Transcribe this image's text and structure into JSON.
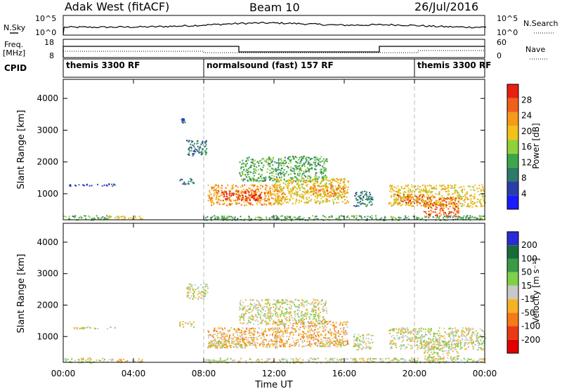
{
  "header": {
    "title": "Adak West (fitACF)",
    "beam": "Beam 10",
    "date": "26/Jul/2016"
  },
  "noise_panel": {
    "left_label": "N.Sky",
    "right_label": "N.Search",
    "left_ticks": [
      "10^5",
      "10^0"
    ],
    "right_ticks": [
      "10^5",
      "10^0"
    ]
  },
  "freq_panel": {
    "left_label_line1": "Freq.",
    "left_label_line2": "[MHz]",
    "right_label": "Nave",
    "left_ticks": [
      "18",
      "8"
    ],
    "right_ticks": [
      "60",
      "0"
    ]
  },
  "cpid_panel": {
    "label": "CPID",
    "programs": [
      {
        "name": "themis 3300 RF",
        "start_hour": 0,
        "end_hour": 8
      },
      {
        "name": "normalsound (fast) 157 RF",
        "start_hour": 8,
        "end_hour": 20
      },
      {
        "name": "themis 3300 RF",
        "start_hour": 20,
        "end_hour": 24
      }
    ]
  },
  "time_axis": {
    "label": "Time UT",
    "ticks": [
      "00:00",
      "04:00",
      "08:00",
      "12:00",
      "16:00",
      "20:00",
      "00:00"
    ],
    "tick_hours": [
      0,
      4,
      8,
      12,
      16,
      20,
      24
    ],
    "range_hours": [
      0,
      24
    ]
  },
  "range_axis": {
    "label": "Slant Range [km]",
    "ticks": [
      "1000",
      "2000",
      "3000",
      "4000"
    ],
    "tick_values": [
      1000,
      2000,
      3000,
      4000
    ],
    "range_km": [
      180,
      4600
    ]
  },
  "power_scale": {
    "label": "Power [dB]",
    "ticks": [
      "4",
      "8",
      "12",
      "16",
      "20",
      "24",
      "28"
    ],
    "tick_values": [
      4,
      8,
      12,
      16,
      20,
      24,
      28
    ],
    "range": [
      0,
      32
    ]
  },
  "velocity_scale": {
    "label": "Velocity [m s⁻¹]",
    "ticks": [
      "200",
      "100",
      "50",
      "15",
      "-15",
      "-50",
      "-100",
      "-200"
    ],
    "colors": [
      "#2b2bd6",
      "#1a6b3a",
      "#3a9a45",
      "#7fd04a",
      "#c8c8c8",
      "#f5b324",
      "#f57a18",
      "#ea3a14",
      "#e00000"
    ]
  },
  "power_colors": [
    "#1a1aff",
    "#2a3ea8",
    "#2e7a6a",
    "#3da64a",
    "#8fd13a",
    "#f2c21a",
    "#f59a1a",
    "#f06018",
    "#e82010"
  ],
  "chart_data": {
    "type": "heatmap",
    "description_free": true,
    "x_units": "hours UT",
    "y_units": "km",
    "power_regions": [
      {
        "x0": 0.0,
        "x1": 2.5,
        "y0": 180,
        "y1": 330,
        "level": 3
      },
      {
        "x0": 2.5,
        "x1": 4.5,
        "y0": 200,
        "y1": 320,
        "level": 5
      },
      {
        "x0": 0.3,
        "x1": 3.0,
        "y0": 1260,
        "y1": 1330,
        "level": 1
      },
      {
        "x0": 6.6,
        "x1": 7.4,
        "y0": 1300,
        "y1": 1500,
        "level": 2
      },
      {
        "x0": 6.7,
        "x1": 6.9,
        "y0": 3250,
        "y1": 3400,
        "level": 1
      },
      {
        "x0": 7.0,
        "x1": 8.2,
        "y0": 2200,
        "y1": 2700,
        "level": 2
      },
      {
        "x0": 8.2,
        "x1": 12.5,
        "y0": 650,
        "y1": 1300,
        "level": 6
      },
      {
        "x0": 9.0,
        "x1": 11.5,
        "y0": 800,
        "y1": 1100,
        "level": 8
      },
      {
        "x0": 10.0,
        "x1": 15.0,
        "y0": 1400,
        "y1": 2200,
        "level": 3
      },
      {
        "x0": 12.0,
        "x1": 16.2,
        "y0": 700,
        "y1": 1500,
        "level": 5
      },
      {
        "x0": 14.0,
        "x1": 16.0,
        "y0": 900,
        "y1": 1300,
        "level": 6
      },
      {
        "x0": 8.0,
        "x1": 24.0,
        "y0": 180,
        "y1": 330,
        "level": 3
      },
      {
        "x0": 16.5,
        "x1": 17.6,
        "y0": 600,
        "y1": 1100,
        "level": 2
      },
      {
        "x0": 18.5,
        "x1": 24.0,
        "y0": 600,
        "y1": 1300,
        "level": 5
      },
      {
        "x0": 20.5,
        "x1": 22.5,
        "y0": 300,
        "y1": 900,
        "level": 7
      },
      {
        "x0": 19.0,
        "x1": 20.5,
        "y0": 700,
        "y1": 1000,
        "level": 7
      }
    ],
    "velocity_regions": [
      {
        "x0": 0.0,
        "x1": 2.5,
        "y0": 180,
        "y1": 330,
        "cls": 4
      },
      {
        "x0": 2.5,
        "x1": 4.5,
        "y0": 200,
        "y1": 320,
        "cls": 5
      },
      {
        "x0": 0.3,
        "x1": 3.0,
        "y0": 1260,
        "y1": 1330,
        "cls": 4
      },
      {
        "x0": 6.6,
        "x1": 7.4,
        "y0": 1300,
        "y1": 1500,
        "cls": 4
      },
      {
        "x0": 7.0,
        "x1": 8.2,
        "y0": 2200,
        "y1": 2700,
        "cls": 4
      },
      {
        "x0": 8.2,
        "x1": 12.5,
        "y0": 650,
        "y1": 1300,
        "cls": 5
      },
      {
        "x0": 8.3,
        "x1": 11.0,
        "y0": 650,
        "y1": 900,
        "cls": 4
      },
      {
        "x0": 10.0,
        "x1": 15.0,
        "y0": 1400,
        "y1": 2200,
        "cls": 4
      },
      {
        "x0": 12.0,
        "x1": 16.2,
        "y0": 700,
        "y1": 1500,
        "cls": 5
      },
      {
        "x0": 14.5,
        "x1": 16.0,
        "y0": 700,
        "y1": 900,
        "cls": 4
      },
      {
        "x0": 8.0,
        "x1": 24.0,
        "y0": 180,
        "y1": 330,
        "cls": 4
      },
      {
        "x0": 16.5,
        "x1": 17.6,
        "y0": 600,
        "y1": 1100,
        "cls": 4
      },
      {
        "x0": 18.5,
        "x1": 24.0,
        "y0": 600,
        "y1": 1300,
        "cls": 4
      },
      {
        "x0": 20.5,
        "x1": 22.5,
        "y0": 300,
        "y1": 900,
        "cls": 4
      }
    ]
  }
}
